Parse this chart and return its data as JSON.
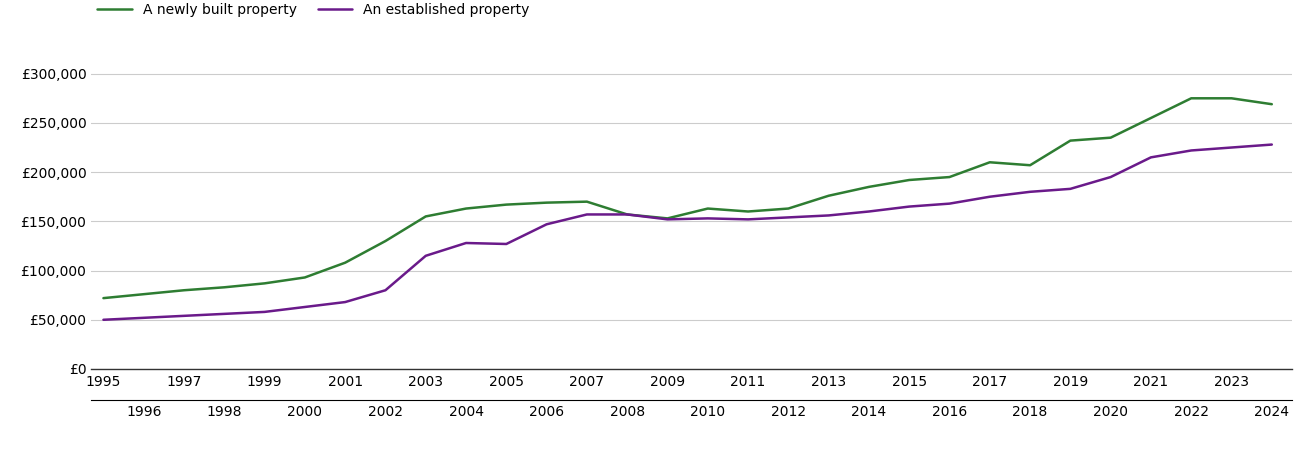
{
  "years": [
    1995,
    1996,
    1997,
    1998,
    1999,
    2000,
    2001,
    2002,
    2003,
    2004,
    2005,
    2006,
    2007,
    2008,
    2009,
    2010,
    2011,
    2012,
    2013,
    2014,
    2015,
    2016,
    2017,
    2018,
    2019,
    2020,
    2021,
    2022,
    2023,
    2024
  ],
  "new_build": [
    72000,
    76000,
    80000,
    83000,
    87000,
    93000,
    108000,
    130000,
    155000,
    163000,
    167000,
    169000,
    170000,
    157000,
    153000,
    163000,
    160000,
    163000,
    176000,
    185000,
    192000,
    195000,
    210000,
    207000,
    232000,
    235000,
    255000,
    275000,
    275000,
    269000
  ],
  "established": [
    50000,
    52000,
    54000,
    56000,
    58000,
    63000,
    68000,
    80000,
    115000,
    128000,
    127000,
    147000,
    157000,
    157000,
    152000,
    153000,
    152000,
    154000,
    156000,
    160000,
    165000,
    168000,
    175000,
    180000,
    183000,
    195000,
    215000,
    222000,
    225000,
    228000
  ],
  "new_build_color": "#2e7d32",
  "established_color": "#6a1a8a",
  "new_build_label": "A newly built property",
  "established_label": "An established property",
  "ylim": [
    0,
    320000
  ],
  "yticks": [
    0,
    50000,
    100000,
    150000,
    200000,
    250000,
    300000
  ],
  "ytick_labels": [
    "£0",
    "£50,000",
    "£100,000",
    "£150,000",
    "£200,000",
    "£250,000",
    "£300,000"
  ],
  "background_color": "#ffffff",
  "grid_color": "#cccccc",
  "line_width": 1.8,
  "xlim_left": 1994.7,
  "xlim_right": 2024.5
}
